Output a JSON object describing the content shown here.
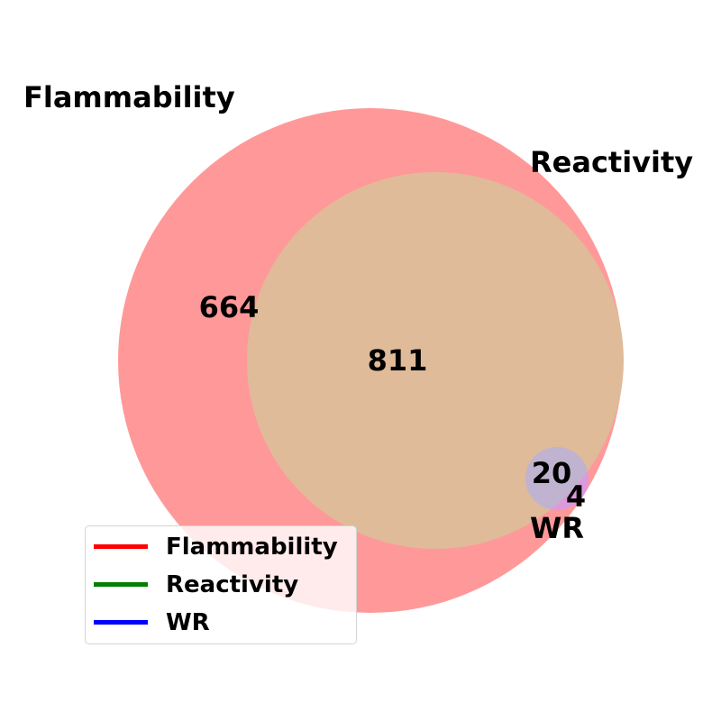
{
  "sets": [
    {
      "key": "flammability",
      "label": "Flammability",
      "color": "#ff0000"
    },
    {
      "key": "reactivity",
      "label": "Reactivity",
      "color": "#008000"
    },
    {
      "key": "wr",
      "label": "WR",
      "color": "#0000ff"
    }
  ],
  "regions": {
    "flammability_only": "664",
    "flammability_reactivity": "811",
    "flammability_reactivity_wr": "20",
    "flammability_wr": "4"
  },
  "legend": {
    "placement": "lower-left",
    "items": [
      {
        "label": "Flammability",
        "color": "#ff0000"
      },
      {
        "label": "Reactivity",
        "color": "#008000"
      },
      {
        "label": "WR",
        "color": "#0000ff"
      }
    ]
  },
  "fill_colors": {
    "flammability": "#ff9999",
    "flammability_reactivity": "#e0bb99",
    "wr_overlap": "#c0b3cf",
    "wr_edge": "#dd99dd"
  }
}
